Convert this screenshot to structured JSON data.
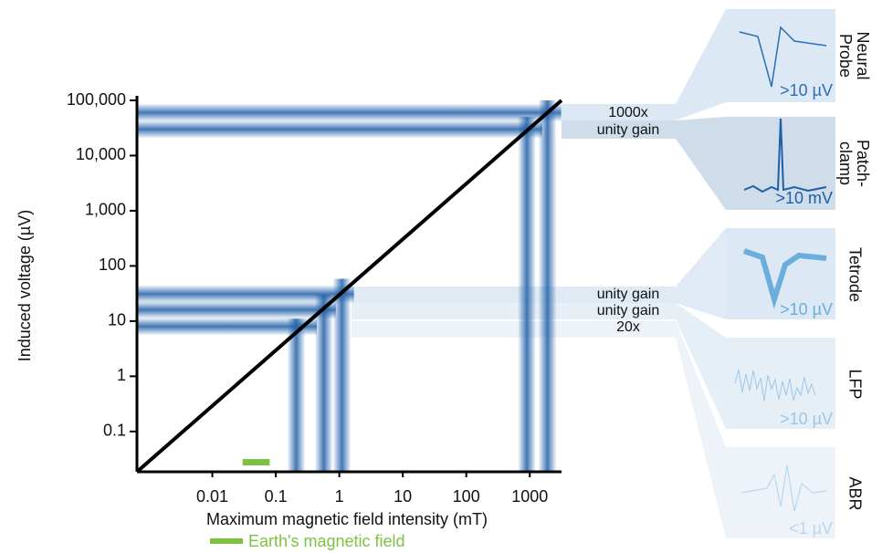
{
  "chart_data": {
    "type": "line",
    "x_label": "Maximum magnetic field intensity (mT)",
    "y_label": "Induced voltage (µV)",
    "log_x": true,
    "log_y": true,
    "xlim": [
      0.00065,
      3162
    ],
    "ylim": [
      0.0186,
      100000
    ],
    "xticks": [
      0.01,
      0.1,
      1,
      10,
      100,
      1000
    ],
    "yticks": [
      0.1,
      1,
      10,
      100,
      {
        "value": 1000,
        "label": "1,000"
      },
      {
        "value": 10000,
        "label": "10,000"
      },
      {
        "value": 100000,
        "label": "100,000"
      }
    ],
    "series": [
      {
        "color": "#000000",
        "x": [
          0.00065,
          3162
        ],
        "values": [
          0.0186,
          100000
        ]
      }
    ],
    "horizontal_bands": [
      60000,
      30000,
      31,
      16,
      8
    ],
    "vertical_bands": [
      0.21,
      0.57,
      1.1,
      900,
      1900
    ],
    "band_color": "#1f5fa8",
    "earth_field": {
      "range": [
        0.03,
        0.08
      ],
      "label": "Earth's magnetic field",
      "color": "#7dc242"
    },
    "gain_labels": [
      "1000x",
      "unity gain",
      "unity gain",
      "unity gain",
      "20x"
    ],
    "panels": [
      {
        "name": "Neural Probe",
        "value": ">10 µV"
      },
      {
        "name": "Patch-clamp",
        "value": ">10 mV"
      },
      {
        "name": "Tetrode",
        "value": ">10 µV"
      },
      {
        "name": "LFP",
        "value": ">10 µV"
      },
      {
        "name": "ABR",
        "value": "<1 µV"
      }
    ]
  }
}
